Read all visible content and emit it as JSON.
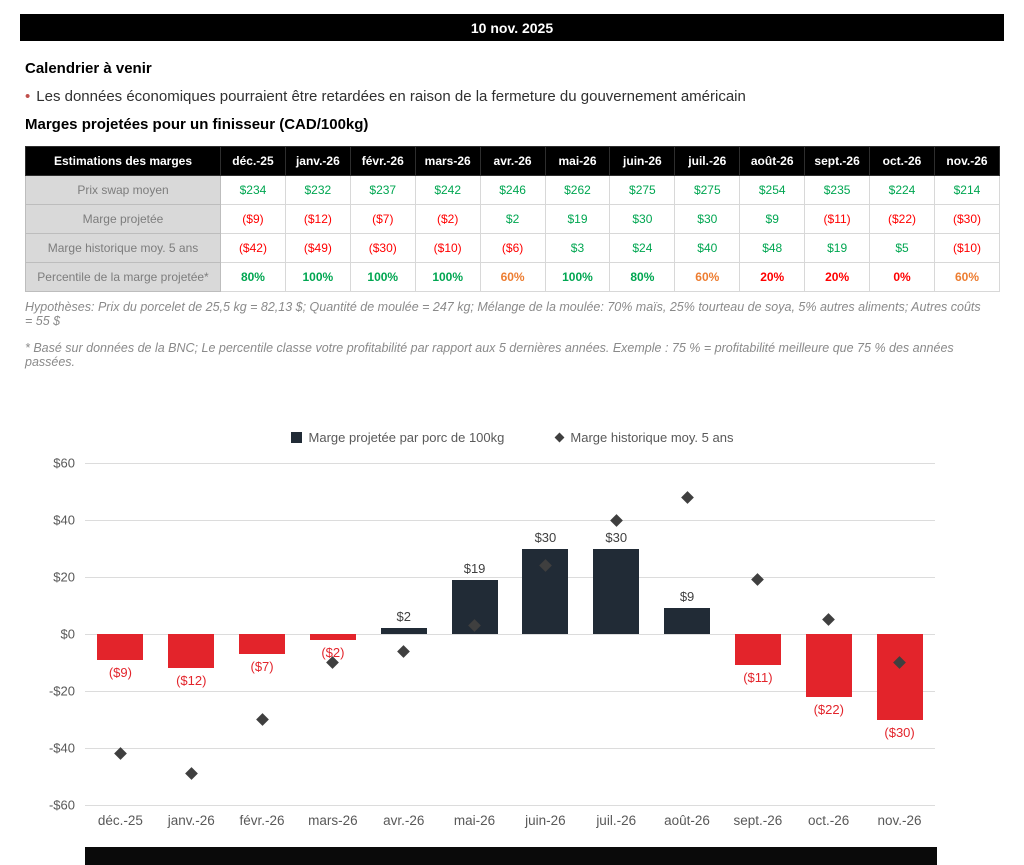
{
  "header": {
    "date": "10 nov. 2025"
  },
  "calendar": {
    "title": "Calendrier à venir",
    "bullet_glyph": "•",
    "bullet_text": "Les données économiques pourraient être retardées en raison de la fermeture du gouvernement américain"
  },
  "table": {
    "title": "Marges projetées pour un finisseur (CAD/100kg)",
    "corner_label": "Estimations des marges",
    "months": [
      "déc.-25",
      "janv.-26",
      "févr.-26",
      "mars-26",
      "avr.-26",
      "mai-26",
      "juin-26",
      "juil.-26",
      "août-26",
      "sept.-26",
      "oct.-26",
      "nov.-26"
    ],
    "rows": [
      {
        "label": "Prix swap moyen",
        "bold": false,
        "values": [
          "$234",
          "$232",
          "$237",
          "$242",
          "$246",
          "$262",
          "$275",
          "$275",
          "$254",
          "$235",
          "$224",
          "$214"
        ],
        "colors": [
          "g",
          "g",
          "g",
          "g",
          "g",
          "g",
          "g",
          "g",
          "g",
          "g",
          "g",
          "g"
        ]
      },
      {
        "label": "Marge projetée",
        "bold": false,
        "values": [
          "($9)",
          "($12)",
          "($7)",
          "($2)",
          "$2",
          "$19",
          "$30",
          "$30",
          "$9",
          "($11)",
          "($22)",
          "($30)"
        ],
        "colors": [
          "r",
          "r",
          "r",
          "r",
          "g",
          "g",
          "g",
          "g",
          "g",
          "r",
          "r",
          "r"
        ]
      },
      {
        "label": "Marge historique moy. 5 ans",
        "bold": false,
        "values": [
          "($42)",
          "($49)",
          "($30)",
          "($10)",
          "($6)",
          "$3",
          "$24",
          "$40",
          "$48",
          "$19",
          "$5",
          "($10)"
        ],
        "colors": [
          "r",
          "r",
          "r",
          "r",
          "r",
          "g",
          "g",
          "g",
          "g",
          "g",
          "g",
          "r"
        ]
      },
      {
        "label": "Percentile de la marge projetée*",
        "bold": true,
        "values": [
          "80%",
          "100%",
          "100%",
          "100%",
          "60%",
          "100%",
          "80%",
          "60%",
          "20%",
          "20%",
          "0%",
          "60%"
        ],
        "colors": [
          "g",
          "g",
          "g",
          "g",
          "o",
          "g",
          "g",
          "o",
          "r",
          "r",
          "r",
          "o"
        ]
      }
    ]
  },
  "footnotes": [
    "Hypothèses: Prix du porcelet de 25,5 kg = 82,13 $; Quantité de moulée = 247 kg; Mélange de la moulée: 70% maïs, 25% tourteau de soya, 5% autres aliments; Autres coûts = 55 $",
    "* Basé sur données de la BNC; Le percentile classe votre profitabilité par rapport aux 5 dernières années. Exemple : 75 % = profitabilité meilleure que 75 % des années passées."
  ],
  "chart_data": {
    "type": "bar",
    "categories": [
      "déc.-25",
      "janv.-26",
      "févr.-26",
      "mars-26",
      "avr.-26",
      "mai-26",
      "juin-26",
      "juil.-26",
      "août-26",
      "sept.-26",
      "oct.-26",
      "nov.-26"
    ],
    "series": [
      {
        "name": "Marge projetée par porc de 100kg",
        "type": "bar",
        "values": [
          -9,
          -12,
          -7,
          -2,
          2,
          19,
          30,
          30,
          9,
          -11,
          -22,
          -30
        ],
        "labels": [
          "($9)",
          "($12)",
          "($7)",
          "($2)",
          "$2",
          "$19",
          "$30",
          "$30",
          "$9",
          "($11)",
          "($22)",
          "($30)"
        ]
      },
      {
        "name": "Marge historique moy. 5 ans",
        "type": "scatter",
        "values": [
          -42,
          -49,
          -30,
          -10,
          -6,
          3,
          24,
          40,
          48,
          19,
          5,
          -10
        ]
      }
    ],
    "ylim": [
      -60,
      60
    ],
    "yticks": [
      {
        "v": 60,
        "label": "$60"
      },
      {
        "v": 40,
        "label": "$40"
      },
      {
        "v": 20,
        "label": "$20"
      },
      {
        "v": 0,
        "label": "$0"
      },
      {
        "v": -20,
        "label": "-$20"
      },
      {
        "v": -40,
        "label": "-$40"
      },
      {
        "v": -60,
        "label": "-$60"
      }
    ],
    "grid": true,
    "legend_position": "top",
    "colors": {
      "bar_positive": "#212B36",
      "bar_negative": "#E3242B",
      "diamond": "#3F3F3F"
    }
  },
  "colors": {
    "green": "#00A651",
    "red": "#FF0000",
    "orange": "#ED7D31",
    "bullet": "#C0504D"
  }
}
